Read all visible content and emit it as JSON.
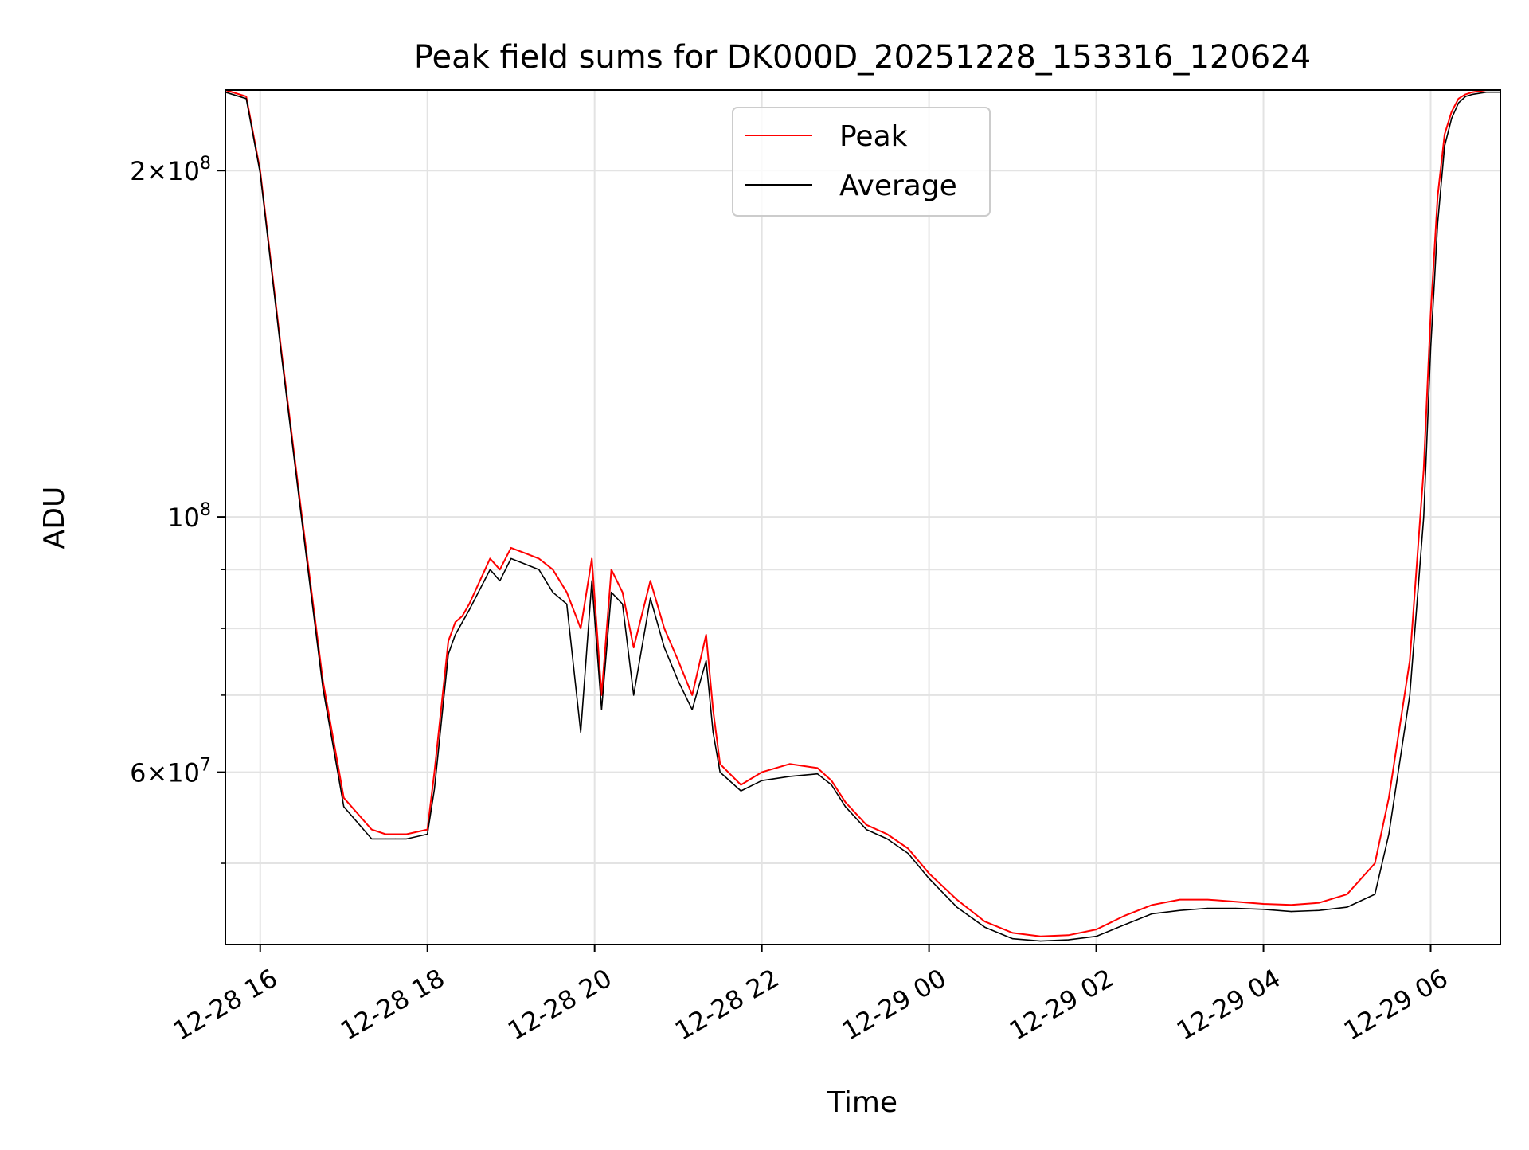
{
  "chart_data": {
    "type": "line",
    "title": "Peak field sums for DK000D_20251228_153316_120624",
    "xlabel": "Time",
    "ylabel": "ADU",
    "yscale": "log",
    "grid": true,
    "legend_position": "top-center",
    "xlim": [
      "12-28 15:35",
      "12-29 06:50"
    ],
    "ylim": [
      42500000,
      235000000
    ],
    "x_ticks": [
      "12-28 16",
      "12-28 18",
      "12-28 20",
      "12-28 22",
      "12-29 00",
      "12-29 02",
      "12-29 04",
      "12-29 06"
    ],
    "y_ticks": [
      {
        "value": 200000000,
        "mantissa": "2",
        "exponent": "8"
      },
      {
        "value": 100000000,
        "mantissa": "",
        "exponent": "8"
      },
      {
        "value": 60000000,
        "mantissa": "6",
        "exponent": "7"
      }
    ],
    "y_minor_ticks": [
      50000000,
      70000000,
      80000000,
      90000000
    ],
    "series": [
      {
        "name": "Peak",
        "color": "#ff0000",
        "x": [
          "12-28 15:35",
          "12-28 15:50",
          "12-28 16:00",
          "12-28 16:15",
          "12-28 16:30",
          "12-28 16:45",
          "12-28 17:00",
          "12-28 17:20",
          "12-28 17:30",
          "12-28 17:37",
          "12-28 17:45",
          "12-28 18:00",
          "12-28 18:05",
          "12-28 18:15",
          "12-28 18:20",
          "12-28 18:25",
          "12-28 18:30",
          "12-28 18:45",
          "12-28 18:52",
          "12-28 19:00",
          "12-28 19:10",
          "12-28 19:20",
          "12-28 19:30",
          "12-28 19:40",
          "12-28 19:50",
          "12-28 19:58",
          "12-28 20:05",
          "12-28 20:12",
          "12-28 20:20",
          "12-28 20:28",
          "12-28 20:40",
          "12-28 20:50",
          "12-28 21:00",
          "12-28 21:10",
          "12-28 21:20",
          "12-28 21:25",
          "12-28 21:30",
          "12-28 21:45",
          "12-28 22:00",
          "12-28 22:20",
          "12-28 22:40",
          "12-28 22:50",
          "12-28 23:00",
          "12-28 23:15",
          "12-28 23:30",
          "12-28 23:45",
          "12-29 00:00",
          "12-29 00:20",
          "12-29 00:40",
          "12-29 01:00",
          "12-29 01:20",
          "12-29 01:40",
          "12-29 02:00",
          "12-29 02:20",
          "12-29 02:40",
          "12-29 03:00",
          "12-29 03:20",
          "12-29 03:40",
          "12-29 04:00",
          "12-29 04:20",
          "12-29 04:40",
          "12-29 05:00",
          "12-29 05:20",
          "12-29 05:30",
          "12-29 05:45",
          "12-29 05:55",
          "12-29 06:00",
          "12-29 06:05",
          "12-29 06:10",
          "12-29 06:15",
          "12-29 06:20",
          "12-29 06:25",
          "12-29 06:30",
          "12-29 06:40",
          "12-29 06:50"
        ],
        "y": [
          235000000,
          232000000,
          200000000,
          140000000,
          100000000,
          72000000,
          57000000,
          53500000,
          53000000,
          53000000,
          53000000,
          53500000,
          60000000,
          78000000,
          81000000,
          82000000,
          84000000,
          92000000,
          90000000,
          94000000,
          93000000,
          92000000,
          90000000,
          86000000,
          80000000,
          92000000,
          70000000,
          90000000,
          86000000,
          77000000,
          88000000,
          80000000,
          75000000,
          70000000,
          79000000,
          68000000,
          61000000,
          58500000,
          60000000,
          61000000,
          60500000,
          59000000,
          56500000,
          54000000,
          53000000,
          51500000,
          49000000,
          46500000,
          44500000,
          43500000,
          43200000,
          43300000,
          43800000,
          45000000,
          46000000,
          46500000,
          46500000,
          46300000,
          46100000,
          46000000,
          46200000,
          47000000,
          50000000,
          57000000,
          75000000,
          110000000,
          150000000,
          190000000,
          215000000,
          225000000,
          231000000,
          233000000,
          234000000,
          235000000,
          235000000
        ]
      },
      {
        "name": "Average",
        "color": "#000000",
        "x": [
          "12-28 15:35",
          "12-28 15:50",
          "12-28 16:00",
          "12-28 16:15",
          "12-28 16:30",
          "12-28 16:45",
          "12-28 17:00",
          "12-28 17:20",
          "12-28 17:30",
          "12-28 17:37",
          "12-28 17:45",
          "12-28 18:00",
          "12-28 18:05",
          "12-28 18:15",
          "12-28 18:20",
          "12-28 18:25",
          "12-28 18:30",
          "12-28 18:45",
          "12-28 18:52",
          "12-28 19:00",
          "12-28 19:10",
          "12-28 19:20",
          "12-28 19:30",
          "12-28 19:40",
          "12-28 19:50",
          "12-28 19:58",
          "12-28 20:05",
          "12-28 20:12",
          "12-28 20:20",
          "12-28 20:28",
          "12-28 20:40",
          "12-28 20:50",
          "12-28 21:00",
          "12-28 21:10",
          "12-28 21:20",
          "12-28 21:25",
          "12-28 21:30",
          "12-28 21:45",
          "12-28 22:00",
          "12-28 22:20",
          "12-28 22:40",
          "12-28 22:50",
          "12-28 23:00",
          "12-28 23:15",
          "12-28 23:30",
          "12-28 23:45",
          "12-29 00:00",
          "12-29 00:20",
          "12-29 00:40",
          "12-29 01:00",
          "12-29 01:20",
          "12-29 01:40",
          "12-29 02:00",
          "12-29 02:20",
          "12-29 02:40",
          "12-29 03:00",
          "12-29 03:20",
          "12-29 03:40",
          "12-29 04:00",
          "12-29 04:20",
          "12-29 04:40",
          "12-29 05:00",
          "12-29 05:20",
          "12-29 05:30",
          "12-29 05:45",
          "12-29 05:55",
          "12-29 06:00",
          "12-29 06:05",
          "12-29 06:10",
          "12-29 06:15",
          "12-29 06:20",
          "12-29 06:25",
          "12-29 06:30",
          "12-29 06:40",
          "12-29 06:50"
        ],
        "y": [
          234000000,
          231000000,
          199000000,
          139000000,
          99000000,
          71000000,
          56000000,
          52500000,
          52500000,
          52500000,
          52500000,
          53000000,
          58000000,
          76000000,
          79000000,
          81000000,
          83000000,
          90000000,
          88000000,
          92000000,
          91000000,
          90000000,
          86000000,
          84000000,
          65000000,
          88000000,
          68000000,
          86000000,
          84000000,
          70000000,
          85000000,
          77000000,
          72000000,
          68000000,
          75000000,
          65000000,
          60000000,
          57800000,
          59000000,
          59500000,
          59800000,
          58500000,
          56000000,
          53500000,
          52500000,
          51000000,
          48500000,
          45800000,
          44000000,
          43000000,
          42800000,
          42900000,
          43200000,
          44200000,
          45200000,
          45500000,
          45700000,
          45700000,
          45600000,
          45400000,
          45500000,
          45800000,
          47000000,
          53000000,
          70000000,
          100000000,
          140000000,
          180000000,
          210000000,
          222000000,
          229000000,
          232000000,
          233000000,
          234000000,
          234000000
        ]
      }
    ]
  }
}
